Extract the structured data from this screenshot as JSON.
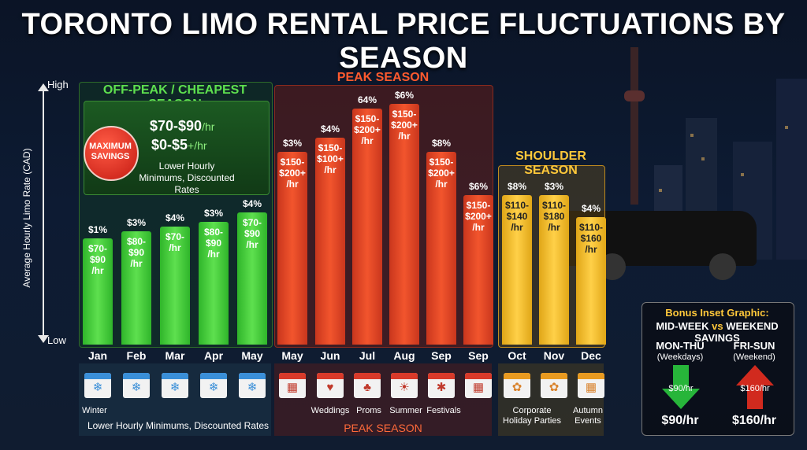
{
  "title": "TORONTO LIMO RENTAL PRICE FLUCTUATIONS BY SEASON",
  "axis": {
    "high": "High",
    "low": "Low",
    "ylabel": "Average Hourly Limo Rate (CAD)"
  },
  "sections": {
    "offpeak": "OFF-PEAK / CHEAPEST SEASON",
    "peak": "PEAK SEASON",
    "shoulder": "SHOULDER SEASON"
  },
  "offpeak_box": {
    "badge": "MAXIMUM SAVINGS",
    "price_main": "$70-$90",
    "price_main_unit": "/hr",
    "price_extra": "$0-$5",
    "price_extra_unit": "+/hr",
    "note": "Lower Hourly Minimums, Discounted Rates"
  },
  "chart_data": {
    "type": "bar",
    "title": "TORONTO LIMO RENTAL PRICE FLUCTUATIONS BY SEASON",
    "ylabel": "Average Hourly Limo Rate (CAD)",
    "y_axis_ends": [
      "Low",
      "High"
    ],
    "categories": [
      "Jan",
      "Feb",
      "Mar",
      "Apr",
      "May",
      "May",
      "Jun",
      "Jul",
      "Aug",
      "Sep",
      "Sep",
      "Oct",
      "Nov",
      "Dec"
    ],
    "season": [
      "off-peak",
      "off-peak",
      "off-peak",
      "off-peak",
      "off-peak",
      "peak",
      "peak",
      "peak",
      "peak",
      "peak",
      "peak",
      "shoulder",
      "shoulder",
      "shoulder"
    ],
    "pct_labels": [
      "$1%",
      "$3%",
      "$4%",
      "$3%",
      "$4%",
      "$3%",
      "$4%",
      "64%",
      "$6%",
      "$8%",
      "$6%",
      "$8%",
      "$3%",
      "$4%"
    ],
    "price_labels": [
      "$70-\n$90\n/hr",
      "$80-\n$90\n/hr",
      "$70-\n/hr",
      "$80-\n$90\n/hr",
      "$70-\n$90\n/hr",
      "$150-\n$200+\n/hr",
      "$150-\n$100+\n/hr",
      "$150-\n$200+\n/hr",
      "$150-\n$200+\n/hr",
      "$150-\n$200+\n/hr",
      "$150-\n$200+\n/hr",
      "$110-\n$140\n/hr",
      "$110-\n$180\n/hr",
      "$110-\n$160\n/hr"
    ],
    "relative_height": [
      0.44,
      0.47,
      0.49,
      0.51,
      0.55,
      0.8,
      0.86,
      0.98,
      1.0,
      0.8,
      0.62,
      0.62,
      0.62,
      0.53
    ],
    "colors": {
      "off-peak": "#3fcc36",
      "peak": "#ef4f2a",
      "shoulder": "#f7c230"
    }
  },
  "events_row": {
    "winter": "Winter",
    "offpeak_note": "Lower Hourly Minimums, Discounted Rates",
    "weddings": "Weddings",
    "proms": "Proms",
    "summer": "Summer",
    "festivals": "Festivals",
    "peak_label": "PEAK SEASON",
    "corporate": "Corporate Holiday Parties",
    "autumn": "Autumn Events"
  },
  "icons": [
    "snowflake-icon",
    "calendar-icon",
    "wedding-icon",
    "prom-icon",
    "summer-icon",
    "fireworks-icon",
    "leaf-icon"
  ],
  "inset": {
    "title_line1": "Bonus Inset Graphic:",
    "title_midweek": "MID-WEEK",
    "title_vs": "vs",
    "title_weekend": "WEEKEND SAVINGS",
    "left_head": "MON-THU",
    "left_sub": "(Weekdays)",
    "left_arrow_val": "$90/hr",
    "left_val": "$90/hr",
    "right_head": "FRI-SUN",
    "right_sub": "(Weekend)",
    "right_arrow_val": "$160/hr",
    "right_val": "$160/hr"
  }
}
